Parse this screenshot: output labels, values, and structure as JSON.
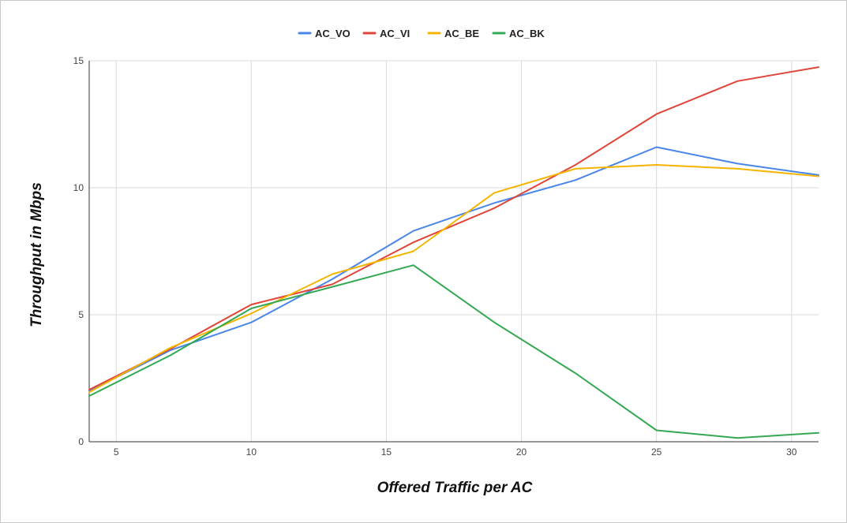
{
  "chart_data": {
    "type": "line",
    "title": "",
    "xlabel": "Offered Traffic per AC",
    "ylabel": "Throughput in Mbps",
    "xlim": [
      4,
      31
    ],
    "ylim": [
      0,
      15
    ],
    "x_ticks": [
      5,
      10,
      15,
      20,
      25,
      30
    ],
    "y_ticks": [
      0,
      5,
      10,
      15
    ],
    "grid": true,
    "legend_position": "top-center",
    "series": [
      {
        "name": "AC_VO",
        "color": "#4a86e8",
        "points": [
          [
            4,
            2.0
          ],
          [
            7,
            3.6
          ],
          [
            10,
            4.7
          ],
          [
            13,
            6.4
          ],
          [
            16,
            8.3
          ],
          [
            19,
            9.4
          ],
          [
            22,
            10.3
          ],
          [
            25,
            11.6
          ],
          [
            28,
            10.95
          ],
          [
            31,
            10.5
          ]
        ]
      },
      {
        "name": "AC_VI",
        "color": "#e0453a",
        "points": [
          [
            4,
            2.05
          ],
          [
            7,
            3.65
          ],
          [
            10,
            5.4
          ],
          [
            13,
            6.2
          ],
          [
            16,
            7.85
          ],
          [
            19,
            9.2
          ],
          [
            22,
            10.9
          ],
          [
            25,
            12.9
          ],
          [
            28,
            14.2
          ],
          [
            31,
            14.75
          ]
        ]
      },
      {
        "name": "AC_BE",
        "color": "#f4b400",
        "points": [
          [
            4,
            1.95
          ],
          [
            7,
            3.7
          ],
          [
            10,
            5.05
          ],
          [
            13,
            6.6
          ],
          [
            16,
            7.5
          ],
          [
            19,
            9.8
          ],
          [
            22,
            10.75
          ],
          [
            25,
            10.9
          ],
          [
            28,
            10.75
          ],
          [
            31,
            10.45
          ]
        ]
      },
      {
        "name": "AC_BK",
        "color": "#34a853",
        "points": [
          [
            4,
            1.8
          ],
          [
            7,
            3.4
          ],
          [
            10,
            5.25
          ],
          [
            13,
            6.1
          ],
          [
            16,
            6.95
          ],
          [
            19,
            4.7
          ],
          [
            22,
            2.7
          ],
          [
            25,
            0.45
          ],
          [
            28,
            0.15
          ],
          [
            31,
            0.35
          ]
        ]
      }
    ]
  }
}
